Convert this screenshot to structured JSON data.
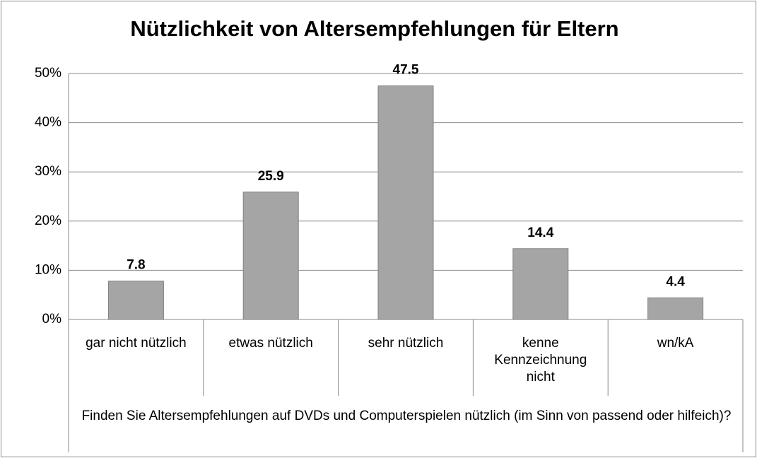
{
  "chart_data": {
    "type": "bar",
    "title": "Nützlichkeit von Altersempfehlungen für Eltern",
    "x_label": "Finden Sie Altersempfehlungen auf DVDs und Computerspielen nützlich (im Sinn von passend oder hilfeich)?",
    "categories": [
      "gar nicht nützlich",
      "etwas nützlich",
      "sehr nützlich",
      "kenne Kennzeichnung nicht",
      "wn/kA"
    ],
    "values": [
      7.8,
      25.9,
      47.5,
      14.4,
      4.4
    ],
    "color": "#a5a5a5",
    "ylim": [
      0,
      50
    ],
    "yticks": [
      {
        "value": 0,
        "label": "0%"
      },
      {
        "value": 10,
        "label": "10%"
      },
      {
        "value": 20,
        "label": "20%"
      },
      {
        "value": 30,
        "label": "30%"
      },
      {
        "value": 40,
        "label": "40%"
      },
      {
        "value": 50,
        "label": "50%"
      }
    ],
    "grid": true
  }
}
